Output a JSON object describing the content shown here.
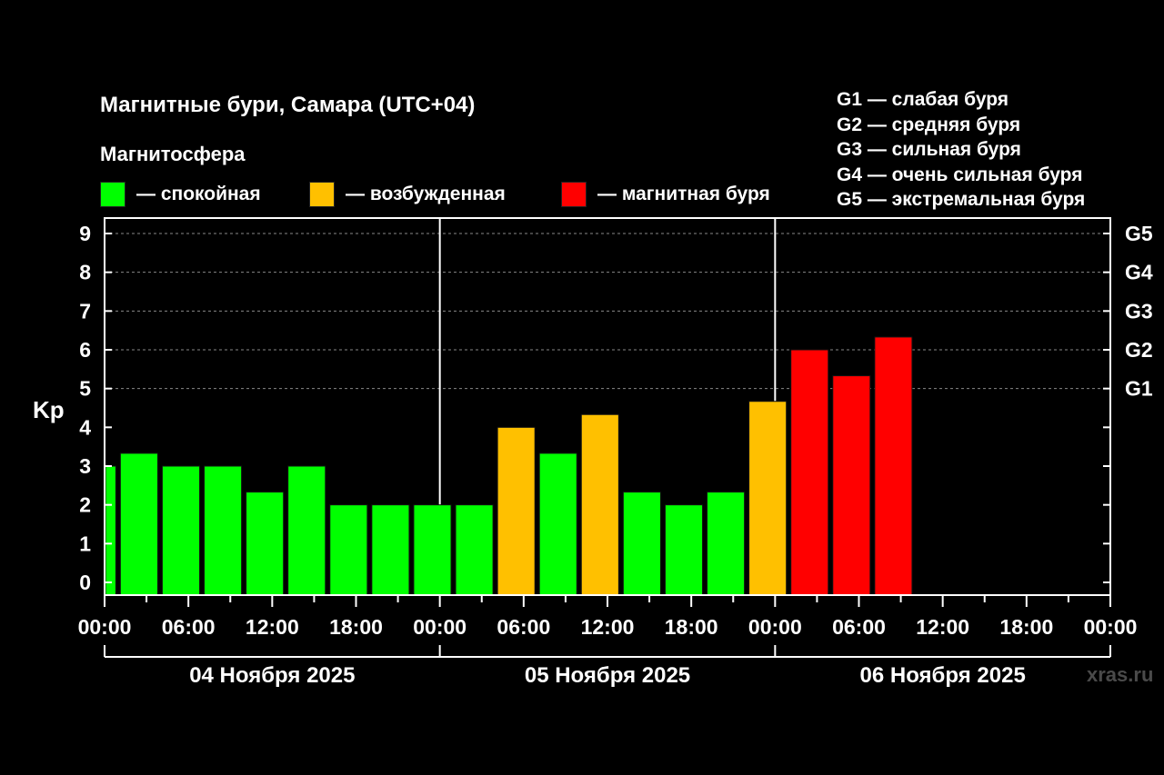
{
  "title": "Магнитные бури, Самара (UTC+04)",
  "subtitle": "Магнитосфера",
  "legend": [
    {
      "label": "— спокойная",
      "color": "#00ff00"
    },
    {
      "label": "— возбужденная",
      "color": "#ffc000"
    },
    {
      "label": "— магнитная буря",
      "color": "#ff0000"
    }
  ],
  "g_legend": [
    "G1 — слабая буря",
    "G2 — средняя буря",
    "G3 — сильная буря",
    "G4 — очень сильная буря",
    "G5 — экстремальная буря"
  ],
  "watermark": "xras.ru",
  "chart_data": {
    "type": "bar",
    "ylabel": "Kp",
    "ylim": [
      0,
      9
    ],
    "yticks": [
      "0",
      "1",
      "2",
      "3",
      "4",
      "5",
      "6",
      "7",
      "8",
      "9"
    ],
    "right_ticks": [
      {
        "value": 5,
        "label": "G1"
      },
      {
        "value": 6,
        "label": "G2"
      },
      {
        "value": 7,
        "label": "G3"
      },
      {
        "value": 8,
        "label": "G4"
      },
      {
        "value": 9,
        "label": "G5"
      }
    ],
    "x_range_hours": [
      0,
      72
    ],
    "xtick_labels": [
      "00:00",
      "06:00",
      "12:00",
      "18:00",
      "00:00",
      "06:00",
      "12:00",
      "18:00",
      "00:00",
      "06:00",
      "12:00",
      "18:00",
      "00:00"
    ],
    "days": [
      "04 Ноября 2025",
      "05 Ноября 2025",
      "06 Ноября 2025"
    ],
    "grid": "horizontal dashed at 5, 6, 7, 8, 9",
    "colors": {
      "quiet": "#00ff00",
      "active": "#ffc000",
      "storm": "#ff0000"
    },
    "bars": [
      {
        "start_hour": 0,
        "value": 3.0,
        "level": "quiet"
      },
      {
        "start_hour": 1,
        "value": 3.33,
        "level": "quiet"
      },
      {
        "start_hour": 4,
        "value": 3.0,
        "level": "quiet"
      },
      {
        "start_hour": 7,
        "value": 3.0,
        "level": "quiet"
      },
      {
        "start_hour": 10,
        "value": 2.33,
        "level": "quiet"
      },
      {
        "start_hour": 13,
        "value": 3.0,
        "level": "quiet"
      },
      {
        "start_hour": 16,
        "value": 2.0,
        "level": "quiet"
      },
      {
        "start_hour": 19,
        "value": 2.0,
        "level": "quiet"
      },
      {
        "start_hour": 22,
        "value": 2.0,
        "level": "quiet"
      },
      {
        "start_hour": 25,
        "value": 2.0,
        "level": "quiet"
      },
      {
        "start_hour": 28,
        "value": 4.0,
        "level": "active"
      },
      {
        "start_hour": 31,
        "value": 3.33,
        "level": "quiet"
      },
      {
        "start_hour": 34,
        "value": 4.33,
        "level": "active"
      },
      {
        "start_hour": 37,
        "value": 2.33,
        "level": "quiet"
      },
      {
        "start_hour": 40,
        "value": 2.0,
        "level": "quiet"
      },
      {
        "start_hour": 43,
        "value": 2.33,
        "level": "quiet"
      },
      {
        "start_hour": 46,
        "value": 4.67,
        "level": "active"
      },
      {
        "start_hour": 49,
        "value": 6.0,
        "level": "storm"
      },
      {
        "start_hour": 52,
        "value": 5.33,
        "level": "storm"
      },
      {
        "start_hour": 55,
        "value": 6.33,
        "level": "storm"
      }
    ]
  }
}
